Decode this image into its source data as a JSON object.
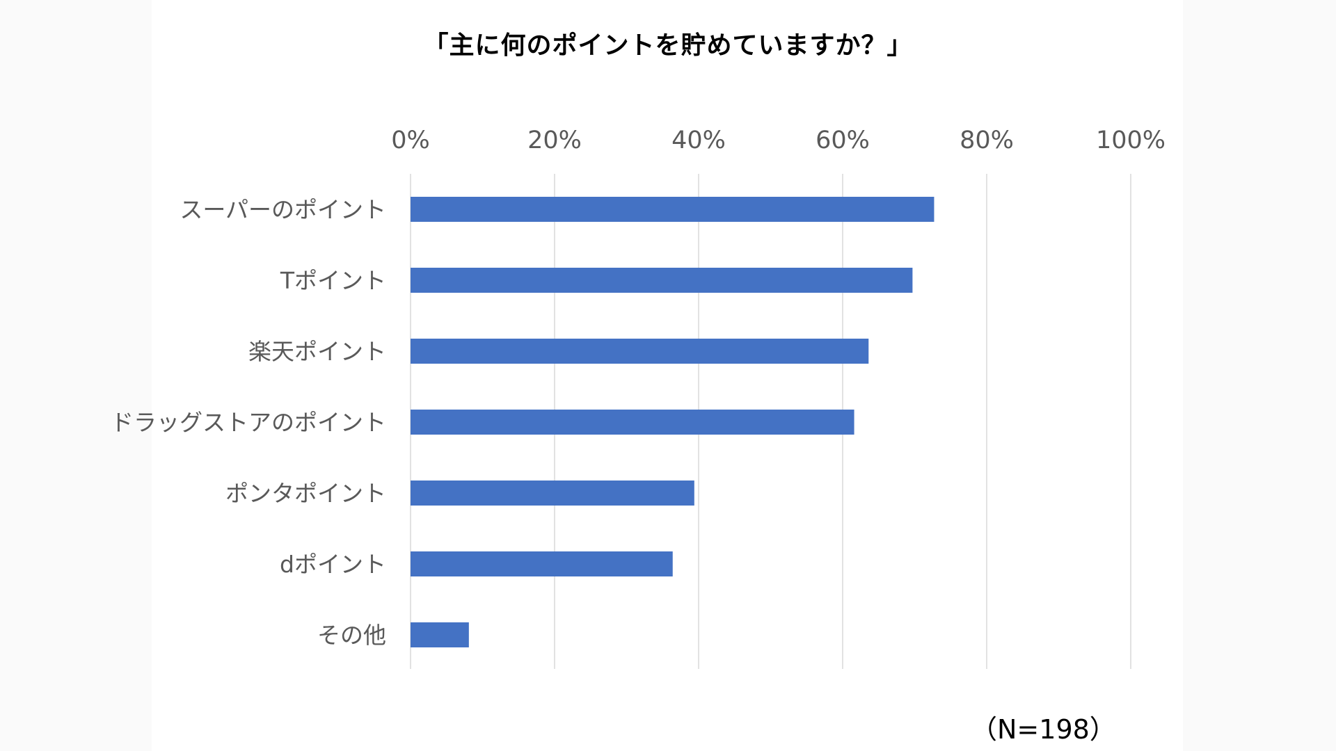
{
  "chart_data": {
    "type": "bar",
    "orientation": "horizontal",
    "title": "「主に何のポイントを貯めていますか？」",
    "note": "（N=198）",
    "categories": [
      "スーパーのポイント",
      "Tポイント",
      "楽天ポイント",
      "ドラッグストアのポイント",
      "ポンタポイント",
      "dポイント",
      "その他"
    ],
    "values": [
      72.7,
      69.7,
      63.6,
      61.6,
      39.4,
      36.4,
      8.1
    ],
    "xlim": [
      0,
      100
    ],
    "x_ticks": [
      0,
      20,
      40,
      60,
      80,
      100
    ],
    "x_tick_labels": [
      "0%",
      "20%",
      "40%",
      "60%",
      "80%",
      "100%"
    ],
    "x_axis_position": "top",
    "grid": true,
    "legend": false,
    "bar_color": "#4472c4"
  }
}
